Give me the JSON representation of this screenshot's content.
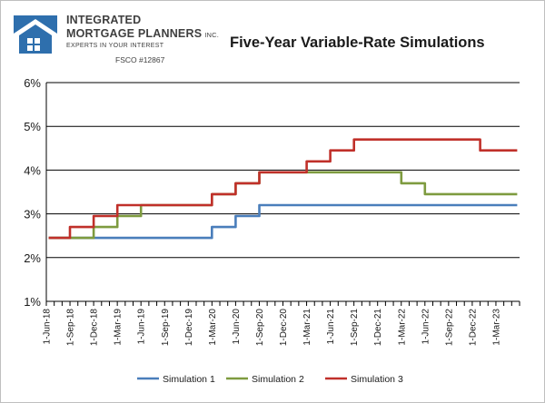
{
  "brand": {
    "line1": "INTEGRATED",
    "line2": "MORTGAGE PLANNERS",
    "inc": "INC.",
    "tagline": "EXPERTS IN YOUR INTEREST",
    "license": "FSCO #12867"
  },
  "colors": {
    "logo_blue": "#2e6fad",
    "grid": "#000000"
  },
  "chart_data": {
    "type": "line",
    "title": "Five-Year Variable-Rate Simulations",
    "xlabel": "",
    "ylabel": "",
    "y_ticks": [
      "1%",
      "2%",
      "3%",
      "4%",
      "5%",
      "6%"
    ],
    "ylim": [
      1,
      6
    ],
    "x_tick_labels": [
      "1-Jun-18",
      "1-Sep-18",
      "1-Dec-18",
      "1-Mar-19",
      "1-Jun-19",
      "1-Sep-19",
      "1-Dec-19",
      "1-Mar-20",
      "1-Jun-20",
      "1-Sep-20",
      "1-Dec-20",
      "1-Mar-21",
      "1-Jun-21",
      "1-Sep-21",
      "1-Dec-21",
      "1-Mar-22",
      "1-Jun-22",
      "1-Sep-22",
      "1-Dec-22",
      "1-Mar-23"
    ],
    "x_months": [
      "2018-06",
      "2018-07",
      "2018-08",
      "2018-09",
      "2018-10",
      "2018-11",
      "2018-12",
      "2019-01",
      "2019-02",
      "2019-03",
      "2019-04",
      "2019-05",
      "2019-06",
      "2019-07",
      "2019-08",
      "2019-09",
      "2019-10",
      "2019-11",
      "2019-12",
      "2020-01",
      "2020-02",
      "2020-03",
      "2020-04",
      "2020-05",
      "2020-06",
      "2020-07",
      "2020-08",
      "2020-09",
      "2020-10",
      "2020-11",
      "2020-12",
      "2021-01",
      "2021-02",
      "2021-03",
      "2021-04",
      "2021-05",
      "2021-06",
      "2021-07",
      "2021-08",
      "2021-09",
      "2021-10",
      "2021-11",
      "2021-12",
      "2022-01",
      "2022-02",
      "2022-03",
      "2022-04",
      "2022-05",
      "2022-06",
      "2022-07",
      "2022-08",
      "2022-09",
      "2022-10",
      "2022-11",
      "2022-12",
      "2023-01",
      "2023-02",
      "2023-03",
      "2023-04",
      "2023-05"
    ],
    "grid": true,
    "legend_position": "bottom",
    "series": [
      {
        "name": "Simulation 1",
        "color": "#4a7ebb",
        "values": [
          2.45,
          2.45,
          2.45,
          2.45,
          2.45,
          2.45,
          2.45,
          2.45,
          2.45,
          2.45,
          2.45,
          2.45,
          2.45,
          2.45,
          2.45,
          2.45,
          2.45,
          2.45,
          2.45,
          2.45,
          2.45,
          2.7,
          2.7,
          2.7,
          2.95,
          2.95,
          2.95,
          3.2,
          3.2,
          3.2,
          3.2,
          3.2,
          3.2,
          3.2,
          3.2,
          3.2,
          3.2,
          3.2,
          3.2,
          3.2,
          3.2,
          3.2,
          3.2,
          3.2,
          3.2,
          3.2,
          3.2,
          3.2,
          3.2,
          3.2,
          3.2,
          3.2,
          3.2,
          3.2,
          3.2,
          3.2,
          3.2,
          3.2,
          3.2,
          3.2
        ]
      },
      {
        "name": "Simulation 2",
        "color": "#7e9b3f",
        "values": [
          2.45,
          2.45,
          2.45,
          2.45,
          2.45,
          2.45,
          2.7,
          2.7,
          2.7,
          2.95,
          2.95,
          2.95,
          3.2,
          3.2,
          3.2,
          3.2,
          3.2,
          3.2,
          3.2,
          3.2,
          3.2,
          3.45,
          3.45,
          3.45,
          3.7,
          3.7,
          3.7,
          3.95,
          3.95,
          3.95,
          3.95,
          3.95,
          3.95,
          3.95,
          3.95,
          3.95,
          3.95,
          3.95,
          3.95,
          3.95,
          3.95,
          3.95,
          3.95,
          3.95,
          3.95,
          3.7,
          3.7,
          3.7,
          3.45,
          3.45,
          3.45,
          3.45,
          3.45,
          3.45,
          3.45,
          3.45,
          3.45,
          3.45,
          3.45,
          3.45
        ]
      },
      {
        "name": "Simulation 3",
        "color": "#c0302a",
        "values": [
          2.45,
          2.45,
          2.45,
          2.7,
          2.7,
          2.7,
          2.95,
          2.95,
          2.95,
          3.2,
          3.2,
          3.2,
          3.2,
          3.2,
          3.2,
          3.2,
          3.2,
          3.2,
          3.2,
          3.2,
          3.2,
          3.45,
          3.45,
          3.45,
          3.7,
          3.7,
          3.7,
          3.95,
          3.95,
          3.95,
          3.95,
          3.95,
          3.95,
          4.2,
          4.2,
          4.2,
          4.45,
          4.45,
          4.45,
          4.7,
          4.7,
          4.7,
          4.7,
          4.7,
          4.7,
          4.7,
          4.7,
          4.7,
          4.7,
          4.7,
          4.7,
          4.7,
          4.7,
          4.7,
          4.7,
          4.45,
          4.45,
          4.45,
          4.45,
          4.45
        ]
      }
    ]
  }
}
